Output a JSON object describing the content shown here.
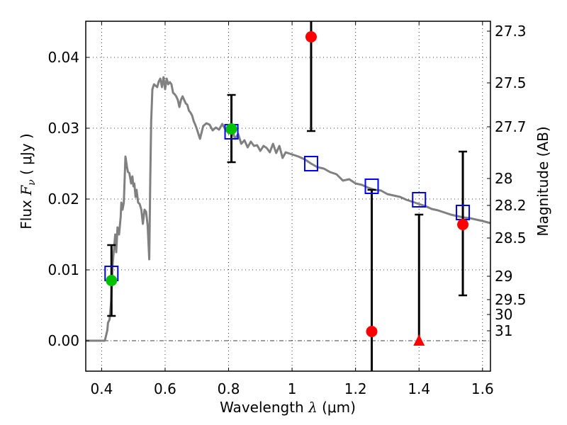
{
  "chart_data": {
    "type": "scatter",
    "title": "",
    "xlabel": "Wavelength",
    "xlabel_symbol": "λ",
    "xlabel_unit": "(μm)",
    "ylabel": "Flux",
    "ylabel_symbol": "F",
    "ylabel_subscript": "ν",
    "ylabel_unit": "( μJy )",
    "y2label": "Magnitude (AB)",
    "xlim": [
      0.35,
      1.625
    ],
    "ylim": [
      -0.0043,
      0.0451
    ],
    "grid": true,
    "xticks": [
      {
        "value": 0.4,
        "label": "0.4"
      },
      {
        "value": 0.6,
        "label": "0.6"
      },
      {
        "value": 0.8,
        "label": "0.8"
      },
      {
        "value": 1.0,
        "label": "1"
      },
      {
        "value": 1.2,
        "label": "1.2"
      },
      {
        "value": 1.4,
        "label": "1.4"
      },
      {
        "value": 1.6,
        "label": "1.6"
      }
    ],
    "yticks": [
      {
        "value": 0.0,
        "label": "0.00"
      },
      {
        "value": 0.01,
        "label": "0.01"
      },
      {
        "value": 0.02,
        "label": "0.02"
      },
      {
        "value": 0.03,
        "label": "0.03"
      },
      {
        "value": 0.04,
        "label": "0.04"
      }
    ],
    "y2ticks": [
      {
        "flux": 0.0437,
        "label": "27.3"
      },
      {
        "flux": 0.0364,
        "label": "27.5"
      },
      {
        "flux": 0.0302,
        "label": "27.7"
      },
      {
        "flux": 0.0229,
        "label": "28"
      },
      {
        "flux": 0.0191,
        "label": "28.2"
      },
      {
        "flux": 0.0145,
        "label": "28.5"
      },
      {
        "flux": 0.0091,
        "label": "29"
      },
      {
        "flux": 0.0058,
        "label": "29.5"
      },
      {
        "flux": 0.0037,
        "label": "30"
      },
      {
        "flux": 0.0014,
        "label": "31"
      }
    ],
    "zero_line": 0.0,
    "model_sed": {
      "name": "model spectrum",
      "color": "#808080",
      "x": [
        0.35,
        0.41,
        0.418,
        0.42,
        0.425,
        0.43,
        0.435,
        0.44,
        0.443,
        0.446,
        0.45,
        0.455,
        0.46,
        0.462,
        0.466,
        0.47,
        0.475,
        0.48,
        0.483,
        0.487,
        0.49,
        0.493,
        0.497,
        0.5,
        0.503,
        0.507,
        0.51,
        0.515,
        0.52,
        0.525,
        0.53,
        0.535,
        0.54,
        0.545,
        0.55,
        0.553,
        0.556,
        0.56,
        0.565,
        0.57,
        0.575,
        0.58,
        0.585,
        0.59,
        0.595,
        0.6,
        0.605,
        0.61,
        0.615,
        0.62,
        0.625,
        0.63,
        0.635,
        0.64,
        0.645,
        0.65,
        0.655,
        0.66,
        0.665,
        0.67,
        0.675,
        0.68,
        0.685,
        0.69,
        0.695,
        0.7,
        0.71,
        0.72,
        0.73,
        0.74,
        0.75,
        0.76,
        0.77,
        0.78,
        0.79,
        0.8,
        0.81,
        0.82,
        0.83,
        0.84,
        0.85,
        0.86,
        0.87,
        0.88,
        0.89,
        0.9,
        0.91,
        0.92,
        0.93,
        0.94,
        0.95,
        0.96,
        0.97,
        0.98,
        1.0,
        1.02,
        1.04,
        1.06,
        1.08,
        1.1,
        1.12,
        1.14,
        1.16,
        1.18,
        1.2,
        1.22,
        1.24,
        1.26,
        1.28,
        1.3,
        1.32,
        1.34,
        1.36,
        1.38,
        1.4,
        1.42,
        1.44,
        1.46,
        1.48,
        1.5,
        1.52,
        1.54,
        1.56,
        1.58,
        1.6,
        1.625
      ],
      "y": [
        0.0,
        0.0,
        0.0015,
        0.0025,
        0.003,
        0.0055,
        0.011,
        0.0135,
        0.015,
        0.0125,
        0.016,
        0.015,
        0.0175,
        0.0195,
        0.0185,
        0.0195,
        0.026,
        0.0245,
        0.0238,
        0.0237,
        0.023,
        0.0222,
        0.0232,
        0.0218,
        0.0222,
        0.0203,
        0.0213,
        0.0195,
        0.0193,
        0.0185,
        0.0165,
        0.0185,
        0.0182,
        0.0163,
        0.0115,
        0.022,
        0.031,
        0.0355,
        0.0362,
        0.036,
        0.0358,
        0.0366,
        0.037,
        0.0358,
        0.0372,
        0.0355,
        0.037,
        0.0362,
        0.0365,
        0.0362,
        0.035,
        0.0348,
        0.0345,
        0.034,
        0.033,
        0.034,
        0.0345,
        0.034,
        0.0335,
        0.0333,
        0.0325,
        0.0322,
        0.0318,
        0.031,
        0.0305,
        0.0299,
        0.0285,
        0.0303,
        0.0307,
        0.0305,
        0.0297,
        0.0301,
        0.0298,
        0.0306,
        0.0298,
        0.0293,
        0.0299,
        0.0285,
        0.0292,
        0.0278,
        0.0283,
        0.0273,
        0.0281,
        0.0275,
        0.0276,
        0.0268,
        0.0275,
        0.0272,
        0.0266,
        0.0278,
        0.0265,
        0.0275,
        0.0258,
        0.0266,
        0.0263,
        0.026,
        0.0256,
        0.025,
        0.0245,
        0.0243,
        0.0238,
        0.0235,
        0.0226,
        0.0228,
        0.0222,
        0.022,
        0.0216,
        0.0213,
        0.0212,
        0.0207,
        0.0205,
        0.0203,
        0.0199,
        0.0196,
        0.0193,
        0.019,
        0.0186,
        0.0184,
        0.0181,
        0.0178,
        0.0176,
        0.0174,
        0.0173,
        0.0171,
        0.0169,
        0.0166
      ]
    },
    "model_photometry": {
      "name": "model bandpass flux",
      "marker": "open-square",
      "color": "#0000ff",
      "x": [
        0.431,
        0.809,
        1.06,
        1.251,
        1.4,
        1.538
      ],
      "y": [
        0.0095,
        0.0295,
        0.025,
        0.0218,
        0.0199,
        0.0181
      ]
    },
    "observed": [
      {
        "name": "detection",
        "marker": "circle",
        "color": "#00c000",
        "x": 0.431,
        "y": 0.0085,
        "err_low": 0.0035,
        "err_high": 0.0135
      },
      {
        "name": "detection",
        "marker": "circle",
        "color": "#00c000",
        "x": 0.809,
        "y": 0.0299,
        "err_low": 0.0252,
        "err_high": 0.0347
      },
      {
        "name": "non-detection",
        "marker": "circle",
        "color": "#ff0000",
        "x": 1.06,
        "y": 0.0429,
        "err_low": 0.0296,
        "err_high": 0.06
      },
      {
        "name": "non-detection",
        "marker": "circle",
        "color": "#ff0000",
        "x": 1.251,
        "y": 0.0013,
        "err_low": -0.02,
        "err_high": 0.0213
      },
      {
        "name": "upper-limit",
        "marker": "triangle",
        "color": "#ff0000",
        "x": 1.4,
        "y": 0.0,
        "err_low": 0.0,
        "err_high": 0.0178
      },
      {
        "name": "non-detection",
        "marker": "circle",
        "color": "#ff0000",
        "x": 1.538,
        "y": 0.0164,
        "err_low": 0.0064,
        "err_high": 0.0267
      }
    ]
  }
}
